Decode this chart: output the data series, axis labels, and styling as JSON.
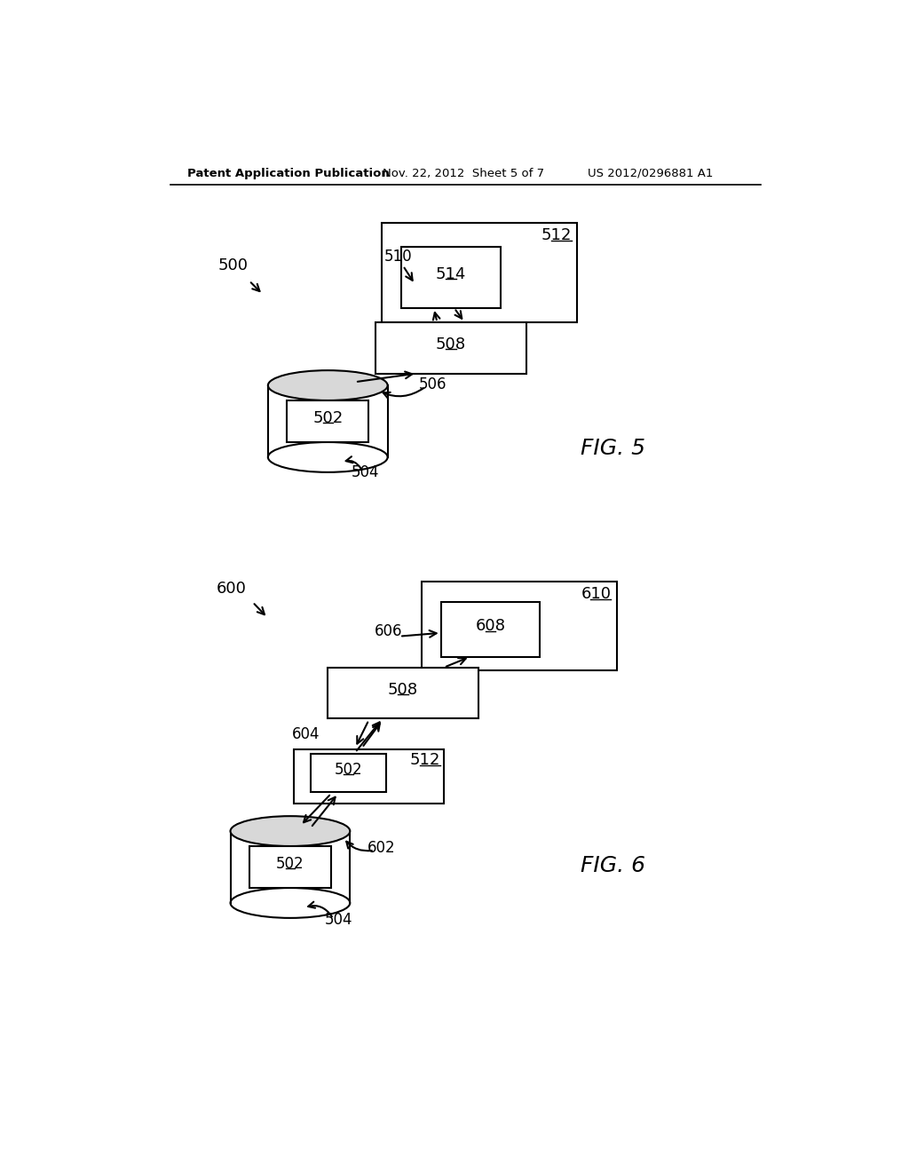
{
  "bg_color": "#ffffff",
  "header_left": "Patent Application Publication",
  "header_mid": "Nov. 22, 2012  Sheet 5 of 7",
  "header_right": "US 2012/0296881 A1",
  "fig5_label": "FIG. 5",
  "fig6_label": "FIG. 6",
  "label_500": "500",
  "label_502": "502",
  "label_504": "504",
  "label_506": "506",
  "label_508": "508",
  "label_510": "510",
  "label_512": "512",
  "label_514": "514",
  "label_600": "600",
  "label_602": "602",
  "label_604": "604",
  "label_606": "606",
  "label_608": "608",
  "label_610": "610"
}
